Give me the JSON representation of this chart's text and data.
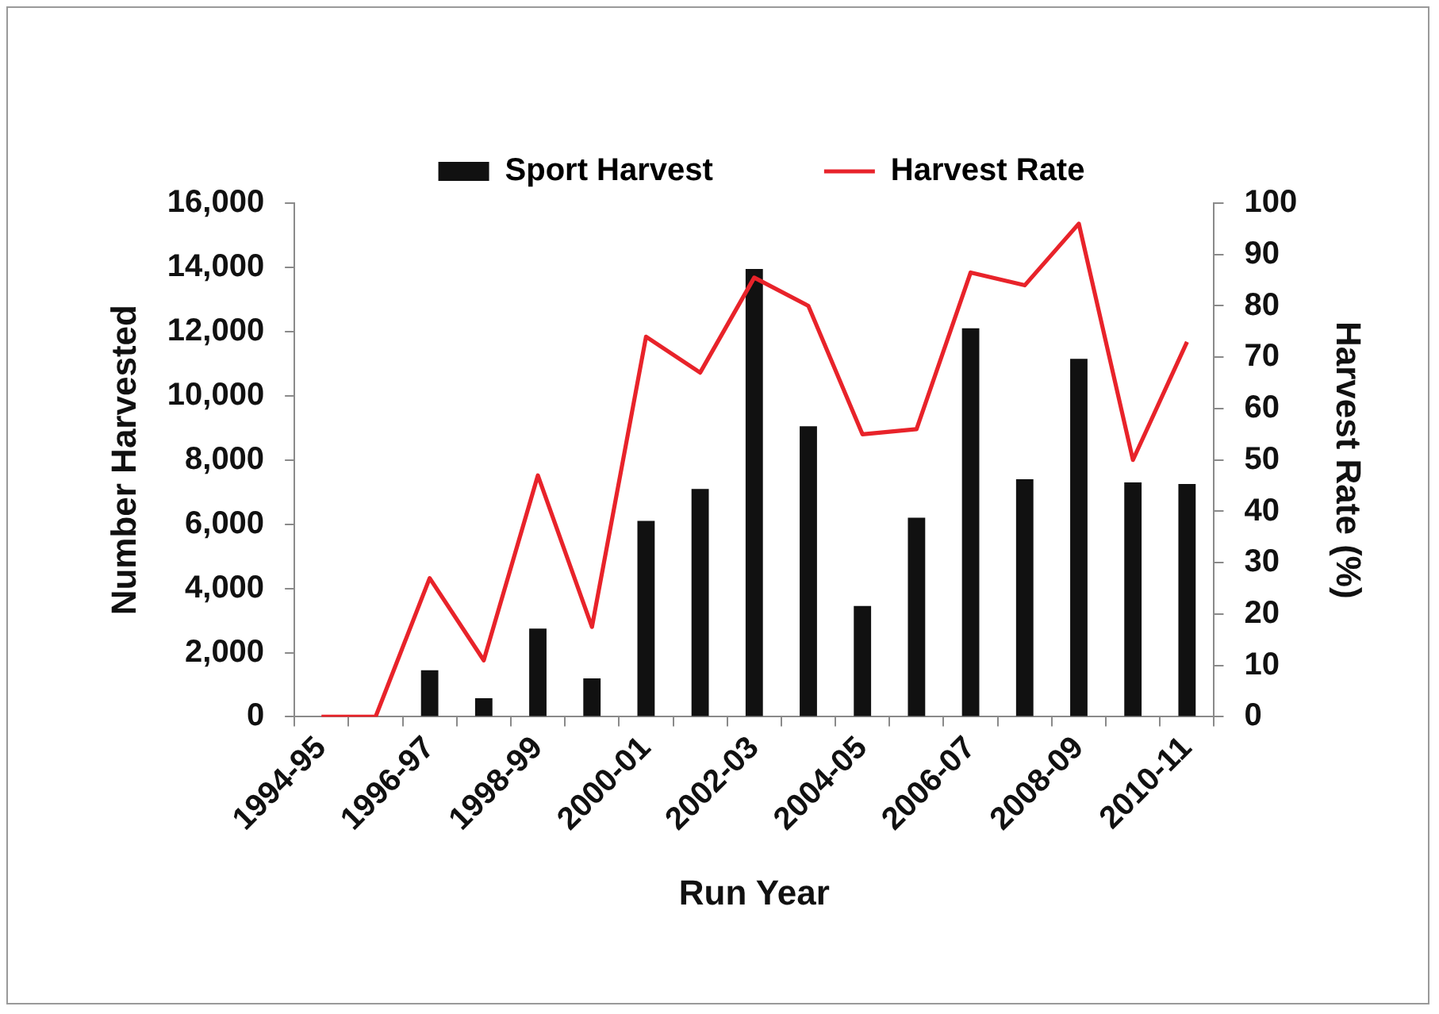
{
  "chart_data": {
    "type": "bar",
    "categories": [
      "1994-95",
      null,
      "1996-97",
      null,
      "1998-99",
      null,
      "2000-01",
      null,
      "2002-03",
      null,
      "2004-05",
      null,
      "2006-07",
      null,
      "2008-09",
      null,
      "2010-11"
    ],
    "series": [
      {
        "name": "Sport Harvest",
        "color": "#111111",
        "values": [
          0,
          0,
          1450,
          580,
          2750,
          1200,
          6100,
          7100,
          13950,
          9050,
          3450,
          6200,
          12100,
          7400,
          11150,
          7300,
          7250
        ]
      },
      {
        "name": "Harvest Rate",
        "type": "line",
        "axis": "y2",
        "color": "#e8232a",
        "values": [
          0,
          0,
          27,
          11,
          47,
          17.5,
          74,
          67,
          85.5,
          80,
          55,
          56,
          86.5,
          84,
          96,
          50,
          73
        ]
      }
    ],
    "xlabel": "Run Year",
    "ylabel": "Number Harvested",
    "y2label": "Harvest Rate (%)",
    "ylim": [
      0,
      16000
    ],
    "yticks": [
      0,
      {
        "value": 2000,
        "label": "2,000"
      },
      {
        "value": 4000,
        "label": "4,000"
      },
      {
        "value": 6000,
        "label": "6,000"
      },
      {
        "value": 8000,
        "label": "8,000"
      },
      {
        "value": 10000,
        "label": "10,000"
      },
      {
        "value": 12000,
        "label": "12,000"
      },
      {
        "value": 14000,
        "label": "14,000"
      },
      {
        "value": 16000,
        "label": "16,000"
      }
    ],
    "y2lim": [
      0,
      100
    ],
    "y2ticks": [
      0,
      10,
      20,
      30,
      40,
      50,
      60,
      70,
      80,
      90,
      100
    ],
    "legend": "top"
  }
}
